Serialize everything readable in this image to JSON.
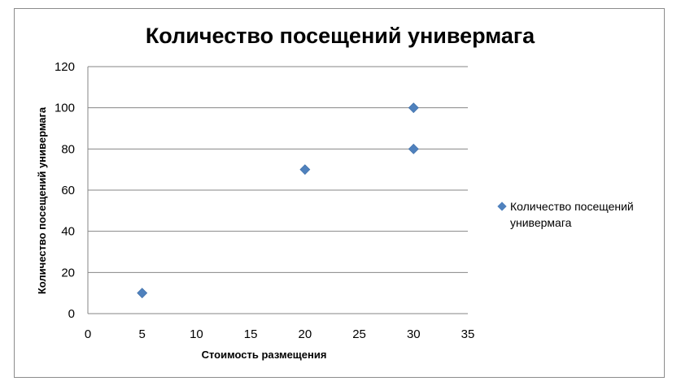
{
  "chart_data": {
    "type": "scatter",
    "title": "Количество посещений универмага",
    "xlabel": "Стоимость размещения",
    "ylabel": "Количество посещений  универмага",
    "xlim": [
      0,
      35
    ],
    "ylim": [
      0,
      120
    ],
    "xticks": [
      "0",
      "5",
      "10",
      "15",
      "20",
      "25",
      "30",
      "35"
    ],
    "yticks": [
      "0",
      "20",
      "40",
      "60",
      "80",
      "100",
      "120"
    ],
    "grid": "horizontal",
    "legend_position": "right",
    "series": [
      {
        "name": "Количество посещений универмага",
        "color": "#4f81bd",
        "marker": "diamond",
        "points": [
          {
            "x": 5,
            "y": 10
          },
          {
            "x": 20,
            "y": 70
          },
          {
            "x": 30,
            "y": 80
          },
          {
            "x": 30,
            "y": 100
          }
        ]
      }
    ]
  }
}
